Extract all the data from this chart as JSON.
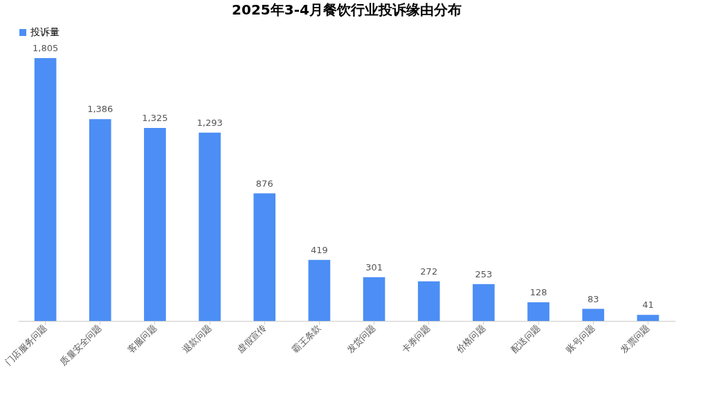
{
  "chart_data": {
    "type": "bar",
    "title": "2025年3-4月餐饮行业投诉缘由分布",
    "categories": [
      "门店服务问题",
      "质量安全问题",
      "客服问题",
      "退款问题",
      "虚假宣传",
      "霸王条款",
      "发货问题",
      "卡券问题",
      "价格问题",
      "配送问题",
      "账号问题",
      "发票问题"
    ],
    "series": [
      {
        "name": "投诉量",
        "color": "#4c8ef5",
        "values": [
          1805,
          1386,
          1325,
          1293,
          876,
          419,
          301,
          272,
          253,
          128,
          83,
          41
        ],
        "value_labels": [
          "1,805",
          "1,386",
          "1,325",
          "1,293",
          "876",
          "419",
          "301",
          "272",
          "253",
          "128",
          "83",
          "41"
        ]
      }
    ],
    "legend": "top",
    "grid": false
  }
}
